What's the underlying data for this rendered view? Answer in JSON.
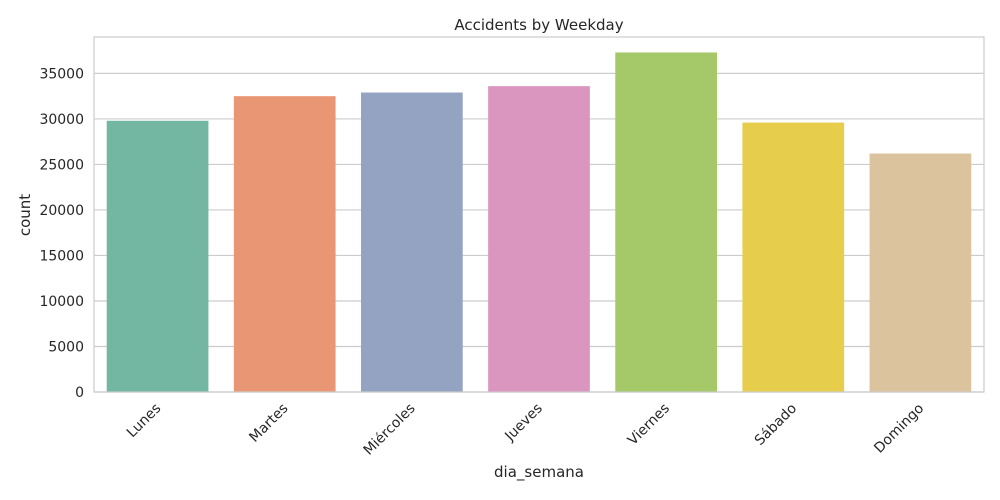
{
  "chart_data": {
    "type": "bar",
    "title": "Accidents by Weekday",
    "xlabel": "dia_semana",
    "ylabel": "count",
    "categories": [
      "Lunes",
      "Martes",
      "Miércoles",
      "Jueves",
      "Viernes",
      "Sábado",
      "Domingo"
    ],
    "values": [
      29800,
      32500,
      32900,
      33600,
      37300,
      29600,
      26200
    ],
    "colors": [
      "#73b6a1",
      "#e99675",
      "#95a3c3",
      "#db96c0",
      "#a5c868",
      "#e6cd4b",
      "#dbc39d"
    ],
    "ylim": [
      0,
      39000
    ],
    "yticks": [
      0,
      5000,
      10000,
      15000,
      20000,
      25000,
      30000,
      35000
    ],
    "grid": "horizontal",
    "legend": "none"
  }
}
